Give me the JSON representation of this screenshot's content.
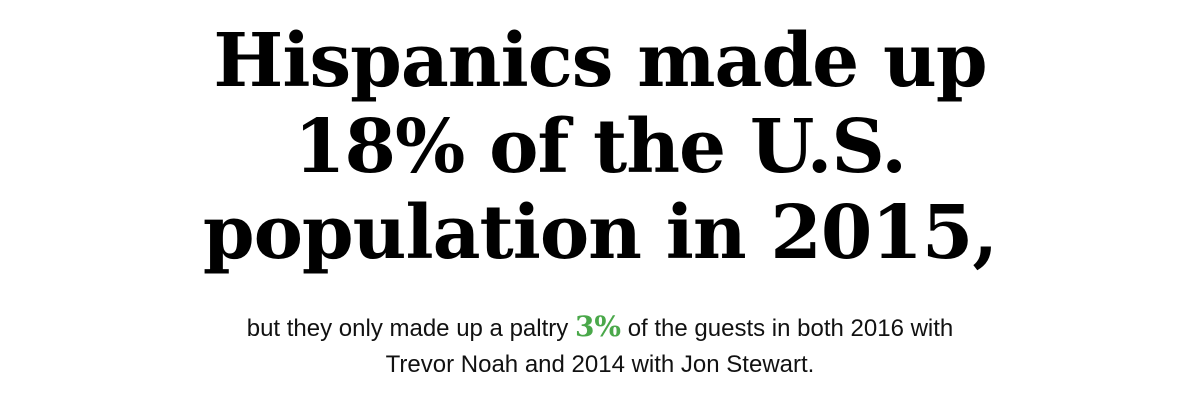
{
  "headline": {
    "lines": [
      "Hispanics made up",
      "18% of the U.S.",
      "population in 2015,"
    ]
  },
  "subtext": {
    "line1_before": "but they only made up a paltry ",
    "highlight": "3%",
    "line1_after": " of the guests in both 2016 with",
    "line2": "Trevor Noah and 2014 with Jon Stewart."
  },
  "colors": {
    "highlight": "#4aa84a",
    "headline": "#000000",
    "background": "#ffffff"
  }
}
